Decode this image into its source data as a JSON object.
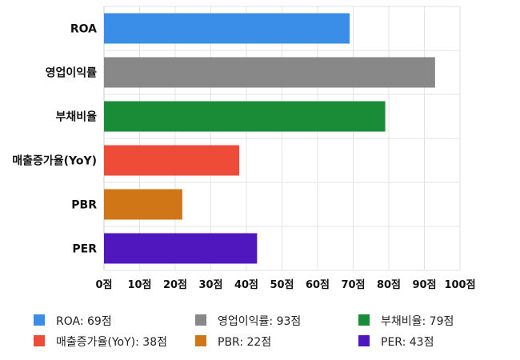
{
  "chart_data": {
    "type": "bar",
    "orientation": "horizontal",
    "categories": [
      "ROA",
      "영업이익률",
      "부채비율",
      "매출증가율(YoY)",
      "PBR",
      "PER"
    ],
    "values": [
      69,
      93,
      79,
      38,
      22,
      43
    ],
    "colors": [
      "#3b8ee8",
      "#888888",
      "#1a8c37",
      "#ee4c38",
      "#d07616",
      "#5017be"
    ],
    "xlim": [
      0,
      100
    ],
    "xticks": [
      0,
      10,
      20,
      30,
      40,
      50,
      60,
      70,
      80,
      90,
      100
    ],
    "tick_suffix": "점",
    "grid": true,
    "legend_position": "bottom",
    "legend": [
      "ROA: 69점",
      "영업이익률: 93점",
      "부채비율: 79점",
      "매출증가율(YoY): 38점",
      "PBR: 22점",
      "PER: 43점"
    ]
  }
}
